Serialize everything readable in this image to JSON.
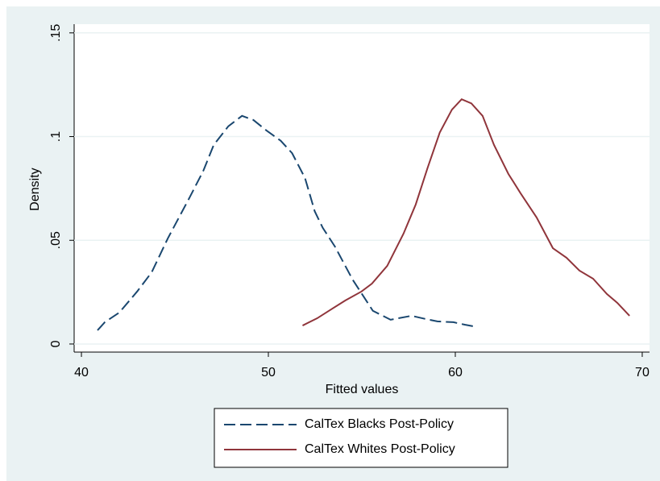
{
  "chart_data": {
    "type": "line",
    "x_label": "Fitted values",
    "y_label": "Density",
    "xlim": [
      39.61,
      70.39
    ],
    "xticks": [
      40,
      50,
      60,
      70
    ],
    "ylim": [
      -0.0039,
      0.1542
    ],
    "yticks": [
      0,
      {
        "value": 0.05,
        "label": ".05"
      },
      {
        "value": 0.1,
        "label": ".1"
      },
      {
        "value": 0.15,
        "label": ".15"
      }
    ],
    "grid": true,
    "legend": "bottom",
    "series": [
      {
        "name": "CalTex Blacks Post-Policy",
        "color": "#1a476f",
        "dash": true,
        "x": [
          40.86,
          41.25,
          42.03,
          42.98,
          43.76,
          44.62,
          45.79,
          46.52,
          47.08,
          47.86,
          48.59,
          49.2,
          49.89,
          50.66,
          51.27,
          51.96,
          52.48,
          52.91,
          53.56,
          54.51,
          55.59,
          56.54,
          57.66,
          58.44,
          59.04,
          59.9,
          60.51,
          61.16
        ],
        "values": [
          0.0066,
          0.0105,
          0.0152,
          0.0253,
          0.0346,
          0.0509,
          0.0707,
          0.0835,
          0.096,
          0.105,
          0.11,
          0.108,
          0.103,
          0.098,
          0.092,
          0.08,
          0.064,
          0.056,
          0.047,
          0.031,
          0.016,
          0.0117,
          0.0136,
          0.012,
          0.0109,
          0.0105,
          0.0093,
          0.0082
        ]
      },
      {
        "name": "CalTex Whites Post-Policy",
        "color": "#90353b",
        "dash": false,
        "x": [
          51.83,
          52.61,
          53.43,
          54.12,
          54.98,
          55.54,
          56.36,
          57.23,
          57.88,
          58.52,
          59.17,
          59.82,
          60.34,
          60.86,
          61.46,
          62.07,
          62.84,
          63.49,
          64.35,
          65.22,
          65.95,
          66.64,
          67.37,
          68.11,
          68.67,
          69.32
        ],
        "values": [
          0.0089,
          0.0124,
          0.0171,
          0.021,
          0.0253,
          0.0291,
          0.0377,
          0.0532,
          0.0672,
          0.085,
          0.102,
          0.113,
          0.118,
          0.116,
          0.11,
          0.096,
          0.082,
          0.0727,
          0.061,
          0.0462,
          0.0416,
          0.0354,
          0.0315,
          0.0241,
          0.0198,
          0.0136
        ]
      }
    ]
  }
}
